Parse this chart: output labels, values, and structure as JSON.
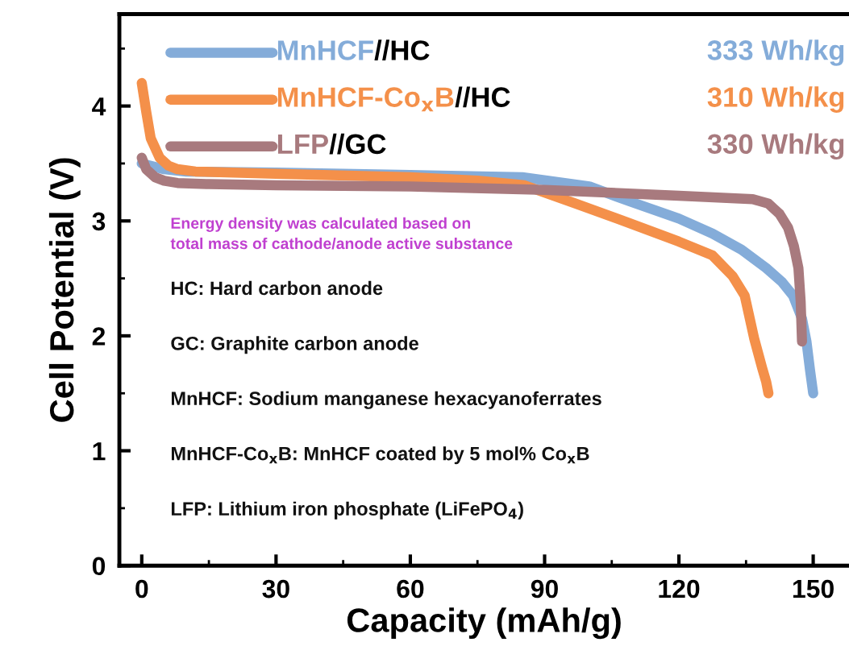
{
  "chart_data": {
    "type": "line",
    "xlabel": "Capacity (mAh/g)",
    "ylabel": "Cell Potential (V)",
    "xlim": [
      -5,
      158
    ],
    "ylim": [
      0,
      4.8
    ],
    "xticks": [
      0,
      30,
      60,
      90,
      120,
      150
    ],
    "yticks": [
      0,
      1,
      2,
      3,
      4
    ],
    "legend": "top left",
    "grid": false,
    "line_style": "solid",
    "series": [
      {
        "name": "MnHCF//HC",
        "color": "#84acd9",
        "x": [
          0,
          5,
          10,
          30,
          60,
          85,
          100,
          109,
          120,
          127.5,
          134,
          139.5,
          143,
          145.5,
          147.5,
          148.5,
          149.3,
          150
        ],
        "values": [
          3.5,
          3.45,
          3.43,
          3.42,
          3.4,
          3.38,
          3.3,
          3.17,
          3.02,
          2.89,
          2.75,
          2.59,
          2.47,
          2.35,
          2.15,
          1.95,
          1.7,
          1.5
        ]
      },
      {
        "name": "MnHCF-Co$_{x}$B//HC",
        "color": "#f4904a",
        "x": [
          0,
          1,
          2,
          4,
          6,
          8,
          12,
          30,
          60,
          75,
          85.5,
          97,
          109,
          120,
          127.5,
          132,
          134.7,
          136.8,
          138.6,
          139.5,
          140
        ],
        "values": [
          4.2,
          3.95,
          3.72,
          3.55,
          3.48,
          3.45,
          3.43,
          3.41,
          3.38,
          3.35,
          3.31,
          3.15,
          2.98,
          2.82,
          2.7,
          2.52,
          2.35,
          1.98,
          1.72,
          1.6,
          1.5
        ]
      },
      {
        "name": "LFP//GC",
        "color": "#a87a7e",
        "x": [
          0,
          1,
          3,
          5,
          8,
          15,
          30,
          60,
          90,
          120,
          136.5,
          140,
          142.5,
          144.4,
          145.7,
          146.7,
          147.2,
          147.5
        ],
        "values": [
          3.55,
          3.45,
          3.38,
          3.35,
          3.33,
          3.32,
          3.31,
          3.3,
          3.27,
          3.22,
          3.19,
          3.15,
          3.06,
          2.94,
          2.78,
          2.59,
          2.3,
          1.95
        ]
      }
    ],
    "annotations": [
      "333 Wh/kg",
      "310 Wh/kg",
      "330 Wh/kg",
      "Energy density was calculated based on\ntotal mass of cathode/anode active substance",
      "HC: Hard carbon anode",
      "GC: Graphite carbon anode",
      "MnHCF: Sodium manganese hexacyanoferrates",
      "MnHCF-Co$_{x}$B: MnHCF coated by 5 mol% Co$_{x}$B",
      "LFP: Lithium iron phosphate (LiFePO$_{4}$)"
    ]
  }
}
